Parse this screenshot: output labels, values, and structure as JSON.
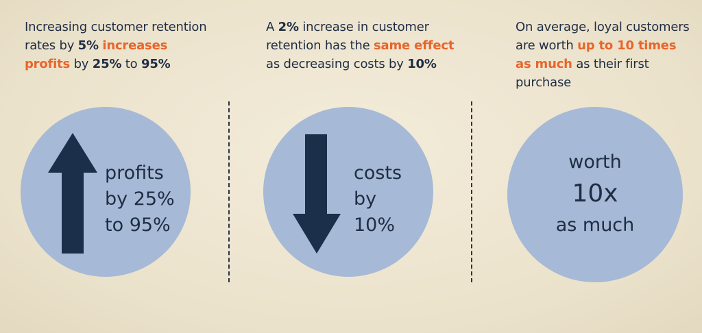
{
  "columns": [
    {
      "text_parts": [
        {
          "t": "Increasing customer retention rates by ",
          "s": "normal"
        },
        {
          "t": "5%",
          "s": "bold"
        },
        {
          "t": " ",
          "s": "normal"
        },
        {
          "t": "increases profits",
          "s": "hl"
        },
        {
          "t": " by ",
          "s": "normal"
        },
        {
          "t": "25%",
          "s": "bold"
        },
        {
          "t": " to ",
          "s": "normal"
        },
        {
          "t": "95%",
          "s": "bold"
        }
      ],
      "circle_lines": [
        "profits",
        "by 25%",
        "to 95%"
      ],
      "arrow": "up-arrow-icon"
    },
    {
      "text_parts": [
        {
          "t": "A ",
          "s": "normal"
        },
        {
          "t": "2%",
          "s": "bold"
        },
        {
          "t": " increase in customer retention has the ",
          "s": "normal"
        },
        {
          "t": "same effect",
          "s": "hl"
        },
        {
          "t": " as decreasing costs by ",
          "s": "normal"
        },
        {
          "t": "10%",
          "s": "bold"
        }
      ],
      "circle_lines": [
        "costs",
        "by",
        "10%"
      ],
      "arrow": "down-arrow-icon"
    },
    {
      "text_parts": [
        {
          "t": "On average, loyal customers are worth ",
          "s": "normal"
        },
        {
          "t": "up to 10 times as much",
          "s": "hl"
        },
        {
          "t": " as their first purchase",
          "s": "normal"
        }
      ],
      "circle_lines": [
        "worth",
        "10x",
        "as much"
      ]
    }
  ],
  "colors": {
    "highlight": "#e8652b",
    "text": "#1f2d44",
    "circle": "#a6b9d6",
    "background": "#efe7d2"
  }
}
